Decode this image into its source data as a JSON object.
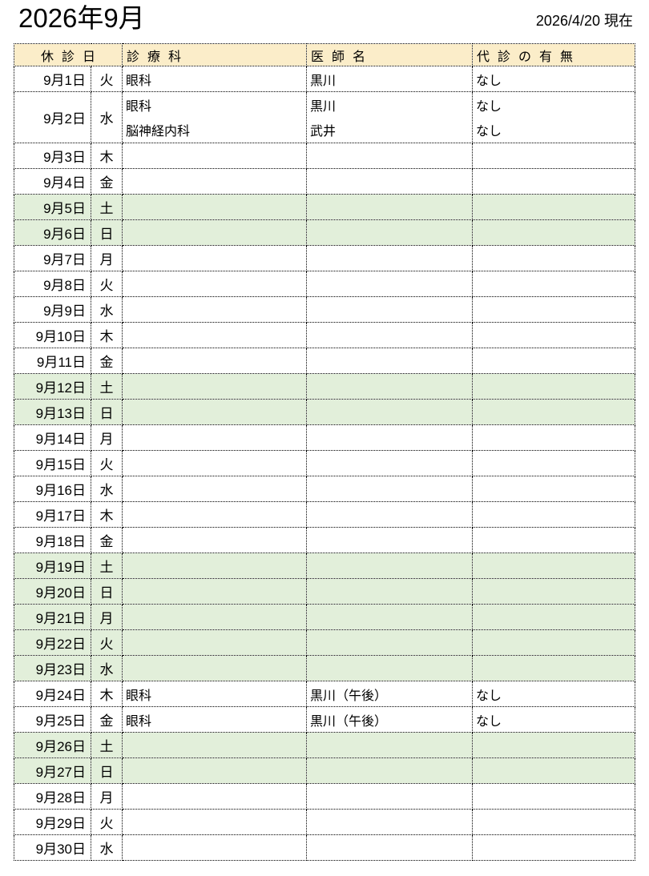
{
  "page": {
    "title": "2026年9月",
    "as_of": "2026/4/20 現在"
  },
  "colors": {
    "header_bg": "#fbedc9",
    "holiday_bg": "#e2efda",
    "border": "#000000",
    "text": "#000000"
  },
  "table": {
    "headers": {
      "closed_date": "休診日",
      "department": "診療科",
      "doctor": "医師名",
      "substitute": "代診の有無"
    },
    "rows": [
      {
        "date": "9月1日",
        "weekday": "火",
        "holiday": false,
        "entries": [
          {
            "department": "眼科",
            "doctor": "黒川",
            "substitute": "なし"
          }
        ]
      },
      {
        "date": "9月2日",
        "weekday": "水",
        "holiday": false,
        "entries": [
          {
            "department": "眼科",
            "doctor": "黒川",
            "substitute": "なし"
          },
          {
            "department": "脳神経内科",
            "doctor": "武井",
            "substitute": "なし"
          }
        ]
      },
      {
        "date": "9月3日",
        "weekday": "木",
        "holiday": false,
        "entries": []
      },
      {
        "date": "9月4日",
        "weekday": "金",
        "holiday": false,
        "entries": []
      },
      {
        "date": "9月5日",
        "weekday": "土",
        "holiday": true,
        "entries": []
      },
      {
        "date": "9月6日",
        "weekday": "日",
        "holiday": true,
        "entries": []
      },
      {
        "date": "9月7日",
        "weekday": "月",
        "holiday": false,
        "entries": []
      },
      {
        "date": "9月8日",
        "weekday": "火",
        "holiday": false,
        "entries": []
      },
      {
        "date": "9月9日",
        "weekday": "水",
        "holiday": false,
        "entries": []
      },
      {
        "date": "9月10日",
        "weekday": "木",
        "holiday": false,
        "entries": []
      },
      {
        "date": "9月11日",
        "weekday": "金",
        "holiday": false,
        "entries": []
      },
      {
        "date": "9月12日",
        "weekday": "土",
        "holiday": true,
        "entries": []
      },
      {
        "date": "9月13日",
        "weekday": "日",
        "holiday": true,
        "entries": []
      },
      {
        "date": "9月14日",
        "weekday": "月",
        "holiday": false,
        "entries": []
      },
      {
        "date": "9月15日",
        "weekday": "火",
        "holiday": false,
        "entries": []
      },
      {
        "date": "9月16日",
        "weekday": "水",
        "holiday": false,
        "entries": []
      },
      {
        "date": "9月17日",
        "weekday": "木",
        "holiday": false,
        "entries": []
      },
      {
        "date": "9月18日",
        "weekday": "金",
        "holiday": false,
        "entries": []
      },
      {
        "date": "9月19日",
        "weekday": "土",
        "holiday": true,
        "entries": []
      },
      {
        "date": "9月20日",
        "weekday": "日",
        "holiday": true,
        "entries": []
      },
      {
        "date": "9月21日",
        "weekday": "月",
        "holiday": true,
        "entries": []
      },
      {
        "date": "9月22日",
        "weekday": "火",
        "holiday": true,
        "entries": []
      },
      {
        "date": "9月23日",
        "weekday": "水",
        "holiday": true,
        "entries": []
      },
      {
        "date": "9月24日",
        "weekday": "木",
        "holiday": false,
        "entries": [
          {
            "department": "眼科",
            "doctor": "黒川（午後）",
            "substitute": "なし"
          }
        ]
      },
      {
        "date": "9月25日",
        "weekday": "金",
        "holiday": false,
        "entries": [
          {
            "department": "眼科",
            "doctor": "黒川（午後）",
            "substitute": "なし"
          }
        ]
      },
      {
        "date": "9月26日",
        "weekday": "土",
        "holiday": true,
        "entries": []
      },
      {
        "date": "9月27日",
        "weekday": "日",
        "holiday": true,
        "entries": []
      },
      {
        "date": "9月28日",
        "weekday": "月",
        "holiday": false,
        "entries": []
      },
      {
        "date": "9月29日",
        "weekday": "火",
        "holiday": false,
        "entries": []
      },
      {
        "date": "9月30日",
        "weekday": "水",
        "holiday": false,
        "entries": []
      }
    ]
  }
}
